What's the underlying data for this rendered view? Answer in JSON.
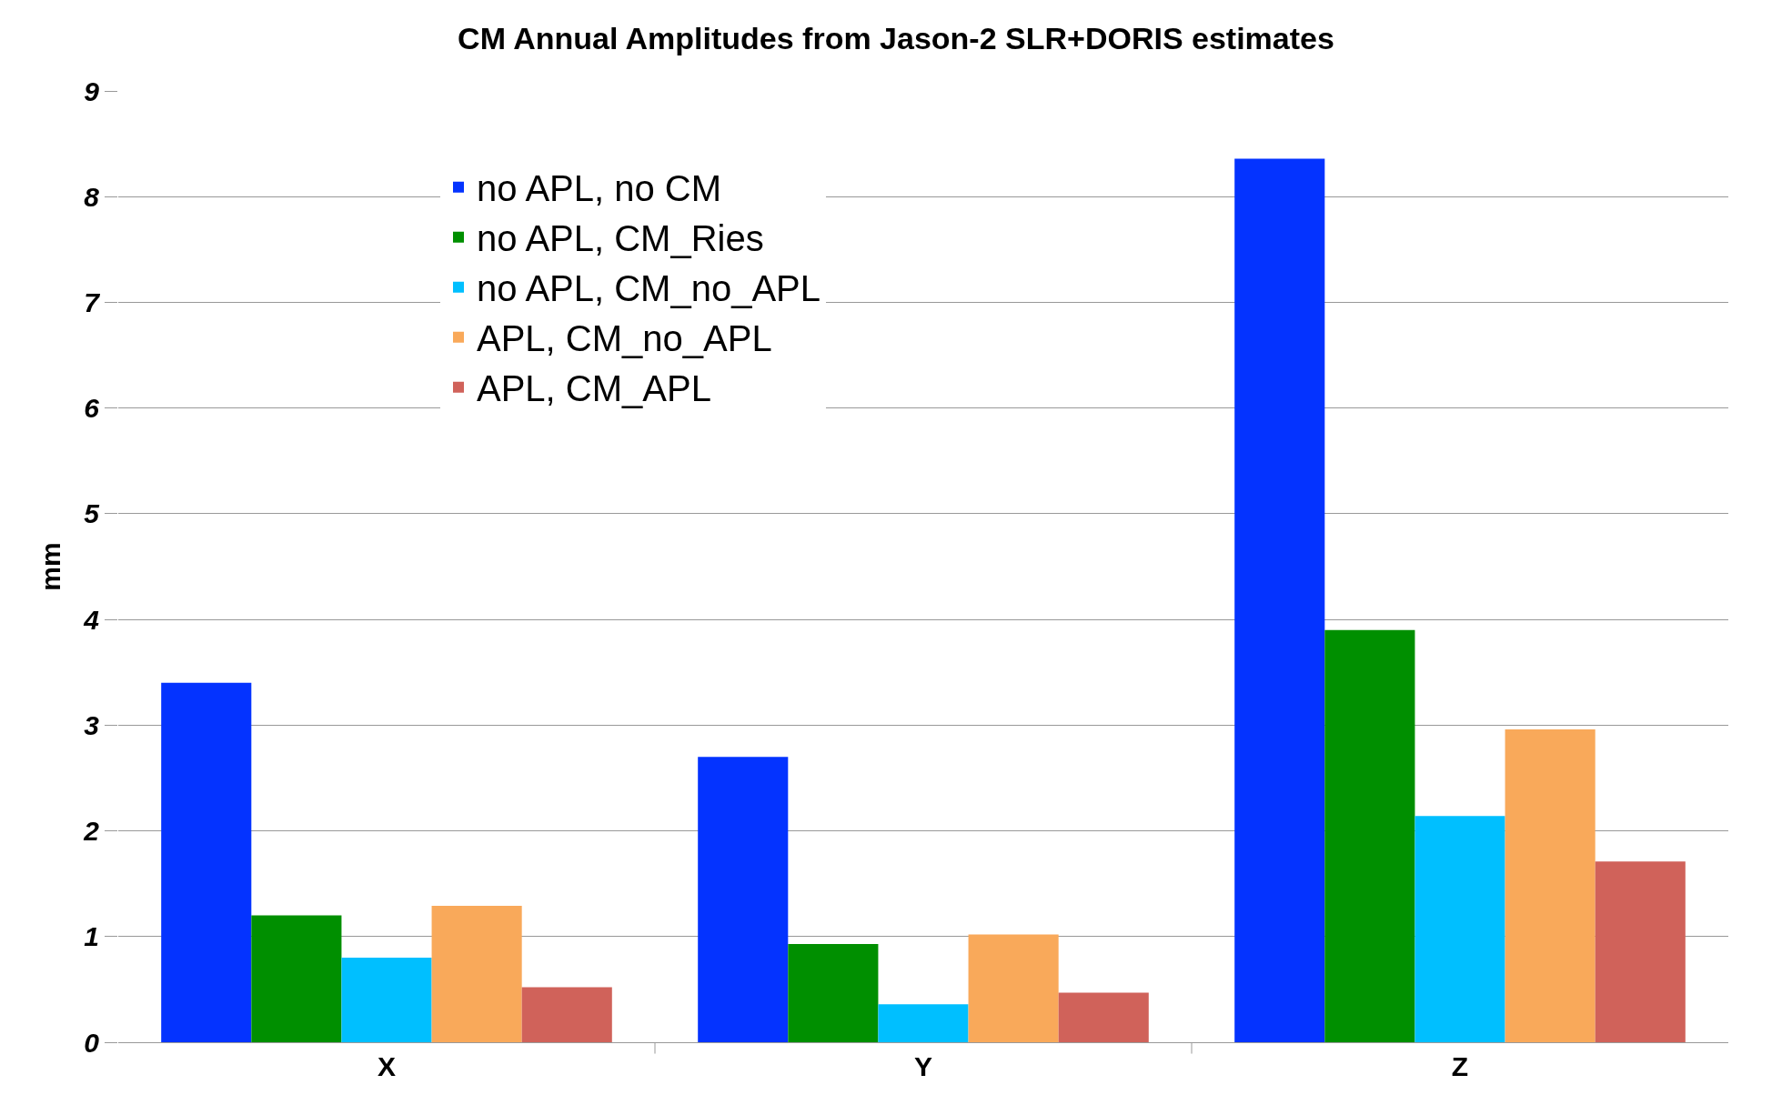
{
  "chart_data": {
    "type": "bar",
    "title": "CM Annual Amplitudes from Jason-2 SLR+DORIS estimates",
    "ylabel": "mm",
    "categories": [
      "X",
      "Y",
      "Z"
    ],
    "series": [
      {
        "name": "no APL, no CM",
        "color": "#0433ff",
        "values": [
          3.4,
          2.7,
          8.36
        ]
      },
      {
        "name": "no APL, CM_Ries",
        "color": "#008f00",
        "values": [
          1.2,
          0.93,
          3.9
        ]
      },
      {
        "name": "no APL, CM_no_APL",
        "color": "#00bfff",
        "values": [
          0.8,
          0.36,
          2.14
        ]
      },
      {
        "name": "APL, CM_no_APL",
        "color": "#f9a95a",
        "values": [
          1.29,
          1.02,
          2.96
        ]
      },
      {
        "name": "APL, CM_APL",
        "color": "#d0625a",
        "values": [
          0.52,
          0.47,
          1.71
        ]
      }
    ],
    "ylim": [
      0,
      9
    ],
    "yticks": [
      0,
      1,
      2,
      3,
      4,
      5,
      6,
      7,
      8,
      9
    ],
    "grid": "y",
    "legend": "top left"
  }
}
